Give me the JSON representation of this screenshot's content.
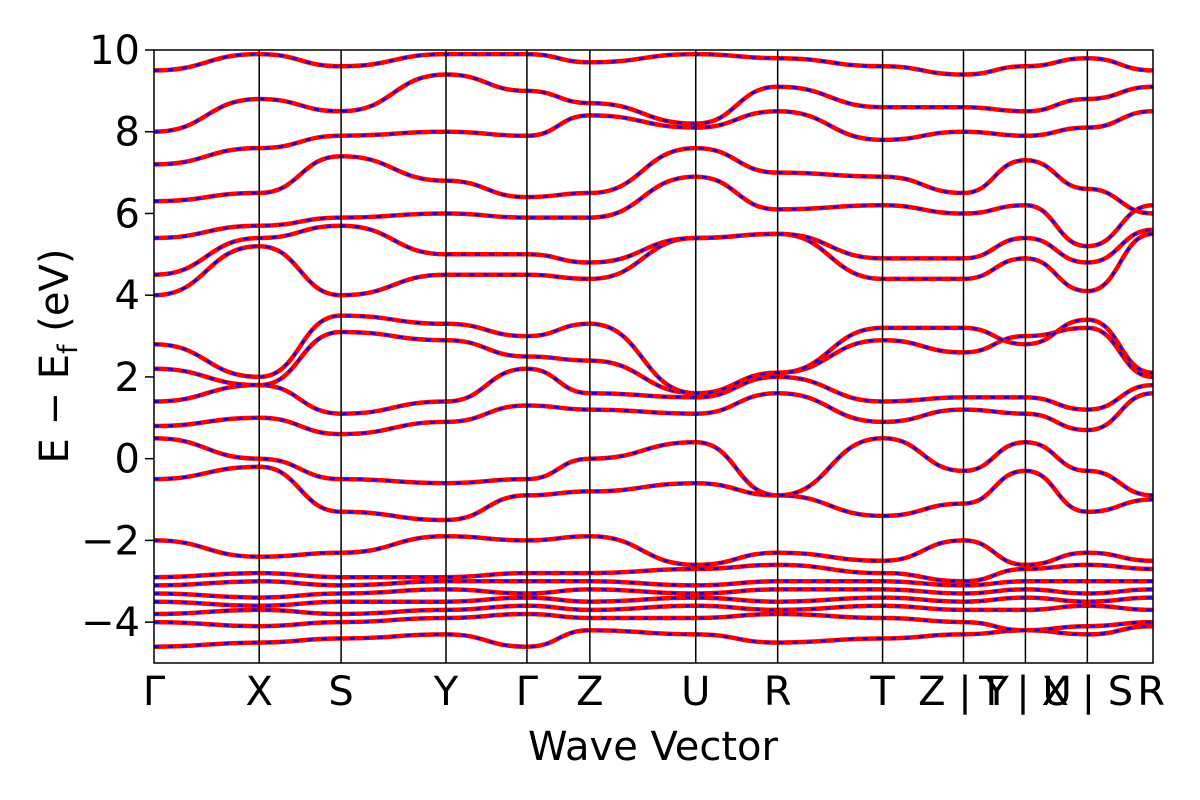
{
  "chart_data": {
    "type": "line",
    "xlabel": "Wave Vector",
    "ylabel": "E − E",
    "ylabel_sub": "f",
    "ylabel_unit": " (eV)",
    "ylim": [
      -5,
      10
    ],
    "y_ticks": [
      -4,
      -2,
      0,
      2,
      4,
      6,
      8,
      10
    ],
    "y_tick_labels": [
      "−4",
      "−2",
      "0",
      "2",
      "4",
      "6",
      "8",
      "10"
    ],
    "k_points": [
      {
        "label": "Γ",
        "x": 0.0
      },
      {
        "label": "X",
        "x": 0.1053
      },
      {
        "label": "S",
        "x": 0.1873
      },
      {
        "label": "Y",
        "x": 0.2923
      },
      {
        "label": "Γ",
        "x": 0.3733
      },
      {
        "label": "Z",
        "x": 0.4363
      },
      {
        "label": "U",
        "x": 0.5423
      },
      {
        "label": "R",
        "x": 0.6243
      },
      {
        "label": "T",
        "x": 0.7293
      },
      {
        "label": "Z | Y",
        "x": 0.8103
      },
      {
        "label": "T | U",
        "x": 0.8723
      },
      {
        "label": "X | S",
        "x": 0.9343
      },
      {
        "label": "R",
        "x": 1.0
      }
    ],
    "k_label_text": [
      "Γ",
      "X",
      "S",
      "Y",
      "Γ",
      "Z",
      "U",
      "R",
      "T",
      "Z | Y",
      "T | U",
      "X | S",
      "R"
    ],
    "grid": false,
    "series": [
      {
        "color": "#ff0000",
        "style": "solid"
      },
      {
        "color": "#0000ff",
        "style": "dashed"
      }
    ],
    "bands": [
      [
        -4.6,
        -4.5,
        -4.4,
        -4.3,
        -4.6,
        -4.2,
        -4.3,
        -4.5,
        -4.4,
        -4.3,
        -4.2,
        -4.3,
        -4.1
      ],
      [
        -4.0,
        -4.1,
        -4.0,
        -3.9,
        -3.8,
        -3.9,
        -3.9,
        -3.8,
        -3.9,
        -4.0,
        -4.2,
        -4.1,
        -4.0
      ],
      [
        -3.8,
        -3.7,
        -3.8,
        -3.7,
        -3.6,
        -3.7,
        -3.6,
        -3.7,
        -3.6,
        -3.7,
        -3.7,
        -3.6,
        -3.7
      ],
      [
        -3.5,
        -3.6,
        -3.5,
        -3.5,
        -3.4,
        -3.5,
        -3.4,
        -3.5,
        -3.4,
        -3.5,
        -3.4,
        -3.5,
        -3.4
      ],
      [
        -3.3,
        -3.4,
        -3.3,
        -3.2,
        -3.3,
        -3.2,
        -3.3,
        -3.2,
        -3.2,
        -3.3,
        -3.2,
        -3.3,
        -3.2
      ],
      [
        -3.1,
        -3.0,
        -3.1,
        -3.0,
        -3.0,
        -3.0,
        -3.1,
        -3.0,
        -3.0,
        -3.1,
        -3.0,
        -3.0,
        -3.0
      ],
      [
        -2.9,
        -2.8,
        -2.9,
        -2.9,
        -2.8,
        -2.8,
        -2.7,
        -2.6,
        -2.8,
        -3.0,
        -2.7,
        -2.6,
        -2.7
      ],
      [
        -2.0,
        -2.4,
        -2.3,
        -1.9,
        -2.0,
        -1.9,
        -2.6,
        -2.3,
        -2.5,
        -2.0,
        -2.6,
        -2.3,
        -2.5
      ],
      [
        -0.5,
        -0.2,
        -1.3,
        -1.5,
        -0.9,
        -0.8,
        -0.6,
        -0.9,
        -1.4,
        -1.1,
        -0.3,
        -1.3,
        -1.0
      ],
      [
        0.5,
        0.0,
        -0.5,
        -0.6,
        -0.5,
        0.0,
        0.4,
        -0.9,
        0.5,
        -0.3,
        0.4,
        -0.3,
        -0.9
      ],
      [
        0.8,
        1.0,
        0.6,
        0.9,
        1.3,
        1.2,
        1.1,
        1.6,
        0.9,
        1.2,
        1.1,
        0.7,
        1.6
      ],
      [
        1.4,
        1.8,
        1.1,
        1.4,
        2.2,
        1.6,
        1.5,
        2.0,
        1.4,
        1.5,
        1.5,
        1.2,
        1.8
      ],
      [
        2.2,
        1.8,
        3.1,
        2.9,
        2.5,
        2.4,
        1.6,
        2.1,
        2.9,
        2.6,
        3.0,
        3.2,
        2.0
      ],
      [
        2.8,
        2.0,
        3.5,
        3.3,
        3.0,
        3.3,
        1.6,
        2.1,
        3.2,
        3.2,
        2.8,
        3.4,
        2.1
      ],
      [
        4.0,
        5.2,
        4.0,
        4.5,
        4.5,
        4.4,
        5.4,
        5.5,
        4.4,
        4.4,
        4.9,
        4.1,
        5.5
      ],
      [
        4.5,
        5.4,
        5.7,
        5.0,
        5.0,
        4.8,
        5.4,
        5.5,
        4.9,
        4.9,
        5.4,
        4.8,
        5.6
      ],
      [
        5.4,
        5.7,
        5.9,
        6.0,
        5.9,
        5.9,
        6.9,
        6.1,
        6.2,
        6.0,
        6.2,
        5.2,
        6.2
      ],
      [
        6.3,
        6.5,
        7.4,
        6.8,
        6.4,
        6.5,
        7.6,
        7.0,
        6.9,
        6.5,
        7.3,
        6.6,
        6.0
      ],
      [
        7.2,
        7.6,
        7.9,
        8.0,
        7.9,
        8.4,
        8.1,
        8.5,
        7.8,
        8.0,
        7.9,
        8.1,
        8.5
      ],
      [
        8.0,
        8.8,
        8.5,
        9.4,
        9.0,
        8.7,
        8.2,
        9.1,
        8.6,
        8.6,
        8.5,
        8.8,
        9.1
      ],
      [
        9.5,
        9.9,
        9.6,
        9.9,
        9.9,
        9.7,
        9.9,
        9.8,
        9.6,
        9.4,
        9.6,
        9.8,
        9.5
      ]
    ]
  }
}
